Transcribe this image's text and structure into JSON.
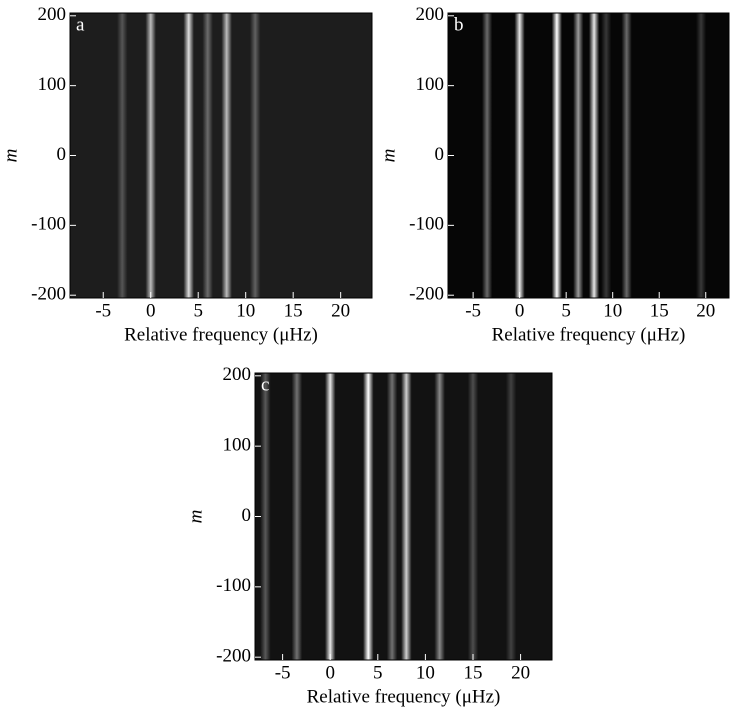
{
  "chart_data": [
    {
      "type": "heatmap",
      "label": "a",
      "xlabel": "Relative frequency (μHz)",
      "ylabel": "m",
      "xlim": [
        -8.5,
        23.3
      ],
      "ylim": [
        -204,
        204
      ],
      "xticks": [
        -5,
        0,
        5,
        10,
        15,
        20
      ],
      "yticks": [
        -200,
        -100,
        0,
        100,
        200
      ],
      "background": "#1d1d1d",
      "ridges": {
        "x": [
          -3,
          0,
          4,
          6,
          8,
          11
        ],
        "values": [
          0.25,
          0.7,
          0.85,
          0.35,
          0.7,
          0.3
        ]
      }
    },
    {
      "type": "heatmap",
      "label": "b",
      "xlabel": "Relative frequency (μHz)",
      "ylabel": "m",
      "xlim": [
        -7.7,
        22.5
      ],
      "ylim": [
        -204,
        204
      ],
      "xticks": [
        -5,
        0,
        5,
        10,
        15,
        20
      ],
      "yticks": [
        -200,
        -100,
        0,
        100,
        200
      ],
      "background": "#060606",
      "ridges": {
        "x": [
          -3.5,
          0,
          4,
          6.3,
          8,
          9.3,
          11.5,
          19.5
        ],
        "values": [
          0.4,
          0.9,
          1,
          0.6,
          0.9,
          0.2,
          0.4,
          0.2
        ]
      }
    },
    {
      "type": "heatmap",
      "label": "c",
      "xlabel": "Relative frequency (μHz)",
      "ylabel": "m",
      "xlim": [
        -7.9,
        23.3
      ],
      "ylim": [
        -204,
        204
      ],
      "xticks": [
        -5,
        0,
        5,
        10,
        15,
        20
      ],
      "yticks": [
        -200,
        -100,
        0,
        100,
        200
      ],
      "background": "#121212",
      "ridges": {
        "x": [
          -6.8,
          -3.5,
          0,
          4,
          6.5,
          8,
          11.5,
          15,
          19
        ],
        "values": [
          0.3,
          0.4,
          0.9,
          1,
          0.4,
          0.8,
          0.5,
          0.25,
          0.2
        ]
      }
    }
  ]
}
